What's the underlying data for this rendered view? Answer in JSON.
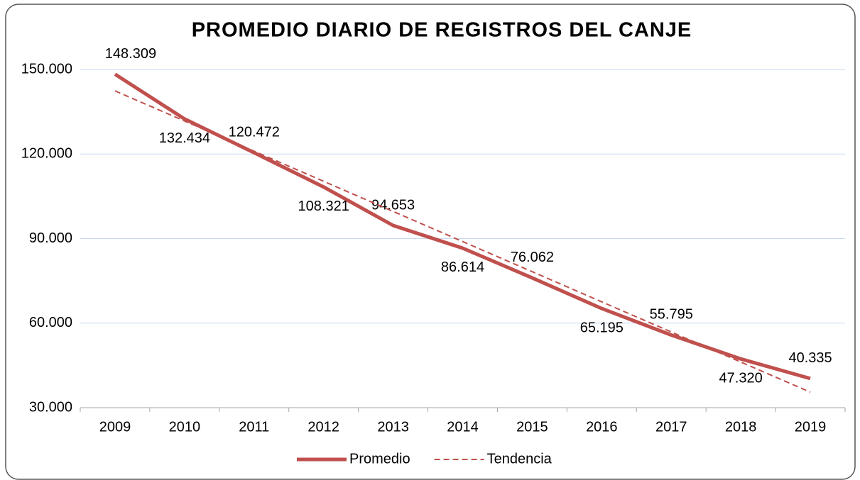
{
  "chart_data": {
    "type": "line",
    "title": "PROMEDIO  DIARIO  DE REGISTROS  DEL  CANJE",
    "categories": [
      "2009",
      "2010",
      "2011",
      "2012",
      "2013",
      "2014",
      "2015",
      "2016",
      "2017",
      "2018",
      "2019"
    ],
    "series": [
      {
        "name": "Promedio",
        "color": "#c0504d",
        "dashed": false,
        "values": [
          148309,
          132434,
          120472,
          108321,
          94653,
          86614,
          76062,
          65195,
          55795,
          47320,
          40335
        ],
        "value_labels": [
          "148.309",
          "132.434",
          "120.472",
          "108.321",
          "94.653",
          "86.614",
          "76.062",
          "65.195",
          "55.795",
          "47.320",
          "40.335"
        ]
      },
      {
        "name": "Tendencia",
        "color": "#c0504d",
        "dashed": true,
        "values": [
          142400,
          131710,
          121020,
          110330,
          99640,
          88950,
          78260,
          67570,
          56880,
          46190,
          35500
        ]
      }
    ],
    "ylim": [
      30000,
      150000
    ],
    "yticks": [
      {
        "value": 30000,
        "label": "30.000"
      },
      {
        "value": 60000,
        "label": "60.000"
      },
      {
        "value": 90000,
        "label": "90.000"
      },
      {
        "value": 120000,
        "label": "120.000"
      },
      {
        "value": 150000,
        "label": "150.000"
      }
    ],
    "grid": true,
    "legend": "bottom"
  }
}
